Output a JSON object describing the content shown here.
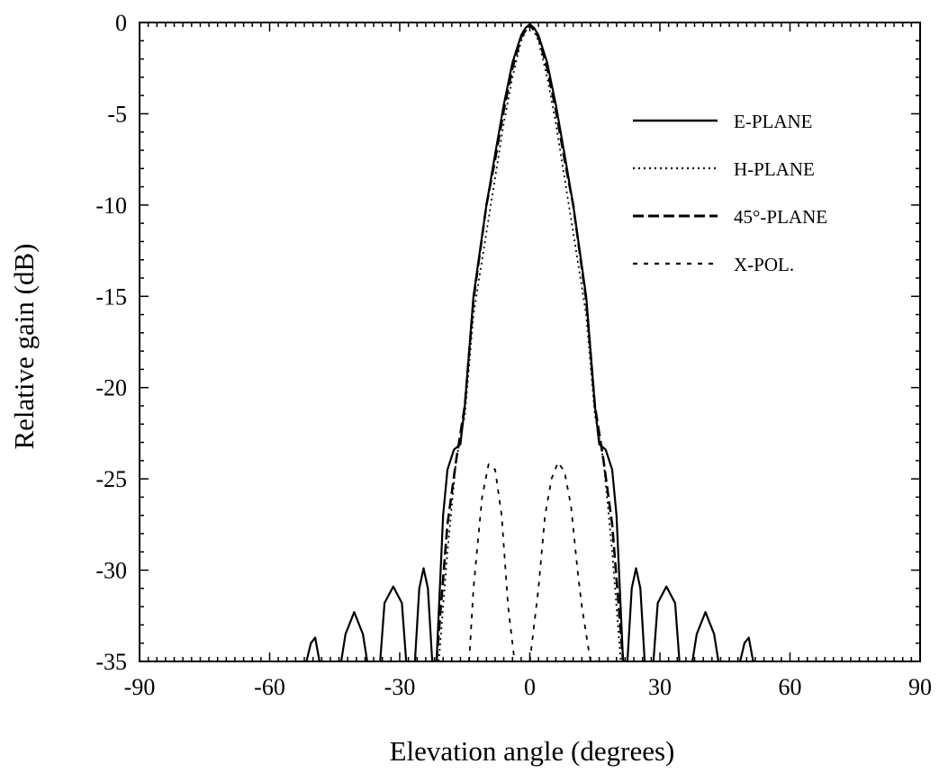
{
  "chart_data": {
    "type": "line",
    "xlabel": "Elevation angle (degrees)",
    "ylabel": "Relative gain (dB)",
    "xlim": [
      -90,
      90
    ],
    "ylim": [
      -35,
      0
    ],
    "xticks": [
      -90,
      -60,
      -30,
      0,
      30,
      60,
      90
    ],
    "xtick_labels": [
      "-90",
      "-60",
      "-30",
      "0",
      "30",
      "60",
      "90"
    ],
    "yticks": [
      0,
      -5,
      -10,
      -15,
      -20,
      -25,
      -30,
      -35
    ],
    "ytick_labels": [
      "0",
      "-5",
      "-10",
      "-15",
      "-20",
      "-25",
      "-30",
      "-35"
    ],
    "grid": false,
    "legend_position": "top-right",
    "series": [
      {
        "name": "E-PLANE",
        "style": "solid",
        "x": [
          -51.5,
          -50.5,
          -49.5,
          -48.5,
          null,
          -43.5,
          -42.5,
          -40.5,
          -38.5,
          -37.5,
          null,
          -34.5,
          -33.5,
          -31.5,
          -29.5,
          -28.5,
          null,
          -26.5,
          -25.5,
          -24.5,
          -23.5,
          -22.5,
          null,
          -21.5,
          -20,
          -19,
          -17.5,
          -16,
          -15,
          -13,
          -10,
          -8,
          -6,
          -4,
          -2,
          -1,
          0,
          1,
          2,
          4,
          6,
          8,
          10,
          13,
          15,
          16,
          17.5,
          19,
          20,
          21.5,
          null,
          22.5,
          23.5,
          24.5,
          25.5,
          26.5,
          null,
          28.5,
          29.5,
          31.5,
          33.5,
          34.5,
          null,
          37.5,
          38.5,
          40.5,
          42.5,
          43.5,
          null,
          48.5,
          49.5,
          50.5,
          51.5
        ],
        "y": [
          -35,
          -34,
          -33.7,
          -35,
          null,
          -35,
          -33.5,
          -32.3,
          -33.5,
          -35,
          null,
          -35,
          -31.8,
          -30.9,
          -31.8,
          -35,
          null,
          -35,
          -31,
          -29.9,
          -31,
          -35,
          null,
          -35,
          -27,
          -24.5,
          -23.4,
          -23.1,
          -21,
          -15,
          -10,
          -7.2,
          -4.5,
          -2.2,
          -0.7,
          -0.3,
          -0.1,
          -0.3,
          -0.7,
          -2.2,
          -4.5,
          -7.2,
          -10,
          -15,
          -21,
          -23.1,
          -23.4,
          -24.5,
          -27,
          -35,
          null,
          -35,
          -31,
          -29.9,
          -31,
          -35,
          null,
          -35,
          -31.8,
          -30.9,
          -31.8,
          -35,
          null,
          -35,
          -33.5,
          -32.3,
          -33.5,
          -35,
          null,
          -35,
          -34,
          -33.7,
          -35
        ]
      },
      {
        "name": "H-PLANE",
        "style": "dotted",
        "x": [
          -21,
          -19,
          -17,
          -15,
          -13,
          -10,
          -8,
          -6,
          -4,
          -2,
          0,
          2,
          4,
          6,
          8,
          10,
          13,
          15,
          17,
          19,
          21
        ],
        "y": [
          -35,
          -29,
          -24,
          -21.5,
          -16,
          -11.5,
          -8.5,
          -5.5,
          -3,
          -1,
          0,
          -1,
          -3,
          -5.5,
          -8.5,
          -11.5,
          -16,
          -21.5,
          -24,
          -29,
          -35
        ]
      },
      {
        "name": "45°-PLANE",
        "style": "dashed",
        "x": [
          -21.5,
          -19,
          -17,
          -15,
          -13,
          -10,
          -8,
          -6,
          -4,
          -2,
          0,
          2,
          4,
          6,
          8,
          10,
          13,
          15,
          17,
          19,
          21.5
        ],
        "y": [
          -35,
          -27.5,
          -24,
          -21,
          -15.2,
          -10,
          -7.5,
          -4.8,
          -2.5,
          -0.8,
          -0.1,
          -0.8,
          -2.5,
          -4.8,
          -7.5,
          -10,
          -15.2,
          -21,
          -24,
          -27.5,
          -35
        ]
      },
      {
        "name": "X-POL.",
        "style": "short-dash",
        "x": [
          -14,
          -13,
          -11,
          -9.5,
          -8,
          -6.5,
          -5,
          -3.5,
          null,
          0,
          2,
          3.5,
          5,
          6.5,
          8,
          9.5,
          11,
          12,
          14
        ],
        "y": [
          -35,
          -31,
          -26,
          -24.2,
          -24.5,
          -27,
          -32,
          -35,
          null,
          -35,
          -31,
          -27,
          -25,
          -24.1,
          -24.6,
          -26.5,
          -30,
          -32,
          -35
        ]
      }
    ]
  }
}
